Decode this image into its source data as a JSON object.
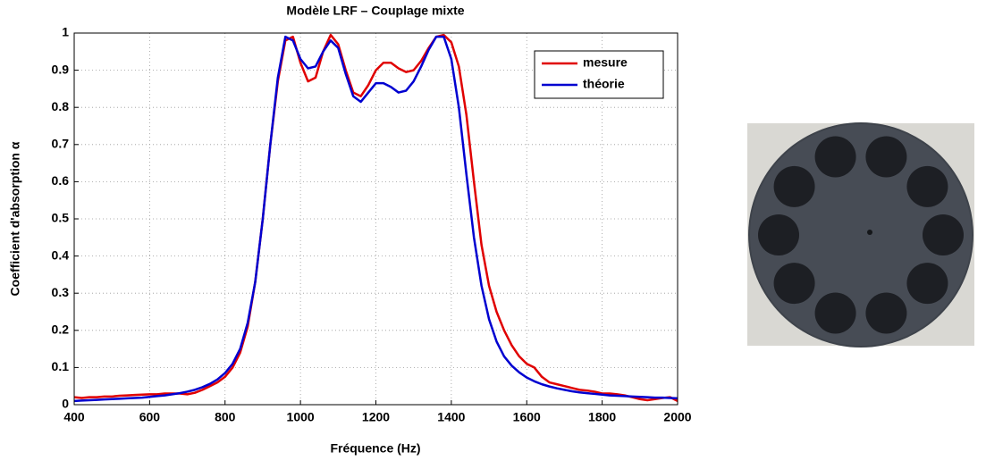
{
  "chart_data": {
    "type": "line",
    "title": "Modèle LRF – Couplage mixte",
    "xlabel": "Fréquence (Hz)",
    "ylabel": "Coefficient d'absorption α",
    "x": [
      400,
      420,
      440,
      460,
      480,
      500,
      520,
      540,
      560,
      580,
      600,
      620,
      640,
      660,
      680,
      700,
      720,
      740,
      760,
      780,
      800,
      820,
      840,
      860,
      880,
      900,
      920,
      940,
      960,
      980,
      1000,
      1020,
      1040,
      1060,
      1080,
      1100,
      1120,
      1140,
      1160,
      1180,
      1200,
      1220,
      1240,
      1260,
      1280,
      1300,
      1320,
      1340,
      1360,
      1380,
      1400,
      1420,
      1440,
      1460,
      1480,
      1500,
      1520,
      1540,
      1560,
      1580,
      1600,
      1620,
      1640,
      1660,
      1680,
      1700,
      1720,
      1740,
      1760,
      1780,
      1800,
      1820,
      1840,
      1860,
      1880,
      1900,
      1920,
      1940,
      1960,
      1980,
      2000
    ],
    "series": [
      {
        "name": "mesure",
        "color": "#e00000",
        "values": [
          0.02,
          0.018,
          0.02,
          0.02,
          0.022,
          0.022,
          0.024,
          0.025,
          0.026,
          0.027,
          0.028,
          0.028,
          0.03,
          0.03,
          0.03,
          0.028,
          0.032,
          0.04,
          0.05,
          0.06,
          0.075,
          0.1,
          0.14,
          0.21,
          0.33,
          0.5,
          0.7,
          0.87,
          0.98,
          0.99,
          0.92,
          0.87,
          0.88,
          0.95,
          0.995,
          0.97,
          0.9,
          0.84,
          0.83,
          0.86,
          0.9,
          0.92,
          0.92,
          0.905,
          0.895,
          0.9,
          0.925,
          0.96,
          0.99,
          0.995,
          0.975,
          0.91,
          0.78,
          0.6,
          0.43,
          0.32,
          0.25,
          0.2,
          0.16,
          0.13,
          0.11,
          0.1,
          0.075,
          0.06,
          0.055,
          0.05,
          0.045,
          0.04,
          0.038,
          0.035,
          0.03,
          0.03,
          0.028,
          0.025,
          0.02,
          0.015,
          0.012,
          0.015,
          0.018,
          0.02,
          0.01
        ]
      },
      {
        "name": "théorie",
        "color": "#0000d0",
        "values": [
          0.01,
          0.011,
          0.012,
          0.013,
          0.014,
          0.015,
          0.016,
          0.017,
          0.018,
          0.019,
          0.021,
          0.023,
          0.025,
          0.028,
          0.031,
          0.035,
          0.04,
          0.047,
          0.056,
          0.068,
          0.085,
          0.11,
          0.15,
          0.22,
          0.33,
          0.5,
          0.7,
          0.88,
          0.99,
          0.98,
          0.93,
          0.905,
          0.91,
          0.95,
          0.98,
          0.96,
          0.89,
          0.83,
          0.815,
          0.84,
          0.865,
          0.865,
          0.855,
          0.84,
          0.845,
          0.87,
          0.91,
          0.955,
          0.99,
          0.99,
          0.93,
          0.8,
          0.62,
          0.45,
          0.32,
          0.23,
          0.17,
          0.13,
          0.105,
          0.087,
          0.073,
          0.063,
          0.055,
          0.049,
          0.044,
          0.04,
          0.036,
          0.033,
          0.031,
          0.029,
          0.027,
          0.025,
          0.024,
          0.023,
          0.022,
          0.021,
          0.02,
          0.019,
          0.019,
          0.018,
          0.017
        ]
      }
    ],
    "xlim": [
      400,
      2000
    ],
    "xticks": [
      400,
      600,
      800,
      1000,
      1200,
      1400,
      1600,
      1800,
      2000
    ],
    "ylim": [
      0,
      1
    ],
    "yticks": [
      0,
      0.1,
      0.2,
      0.3,
      0.4,
      0.5,
      0.6,
      0.7,
      0.8,
      0.9,
      1
    ],
    "grid": true,
    "legend": "upper-right"
  }
}
